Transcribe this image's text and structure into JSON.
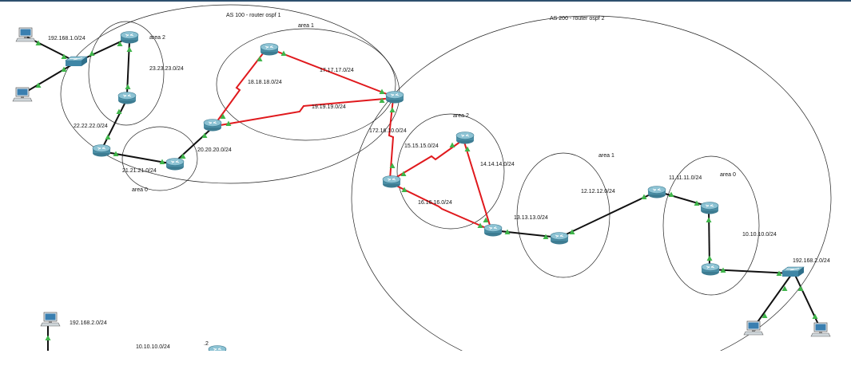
{
  "colors": {
    "background": "#ffffff",
    "ethernet_link": "#111111",
    "serial_link": "#e0191d",
    "link_up": "#3fb54a",
    "router_body": "#4b8fa6",
    "router_top": "#8cc2d3",
    "switch_body": "#3f86a6",
    "pc_screen": "#3a7fb0",
    "boundary": "#222222"
  },
  "as_labels": {
    "as100": "AS 100 - router ospf 1",
    "as200": "AS 200 - router ospf 2"
  },
  "area_labels": {
    "as100_area2": "area 2",
    "as100_area1": "area 1",
    "as100_area0": "area 0",
    "as200_area2": "area 2",
    "as200_area1": "area 1",
    "as200_area0": "area 0"
  },
  "network_labels": {
    "n1": "192.168.1.0/24",
    "n23": "23.23.23.0/24",
    "n22": "22.22.22.0/24",
    "n21": "21.21.21.0/24",
    "n20": "20.20.20.0/24",
    "n18": "18.18.18.0/24",
    "n17": "17.17.17.0/24",
    "n19": "19.19.19.0/24",
    "n172": "172.16.10.0/24",
    "n15": "15.15.15.0/24",
    "n14": "14.14.14.0/24",
    "n16": "16.16.16.0/24",
    "n13": "13.13.13.0/24",
    "n12": "12.12.12.0/24",
    "n11": "11.11.11.0/24",
    "n10": "10.10.10.0/24",
    "n2": "192.168.2.0/24",
    "n2b": "192.168.2.0/24",
    "n10b": "10.10.10.0/24",
    "dot2": ".2"
  }
}
